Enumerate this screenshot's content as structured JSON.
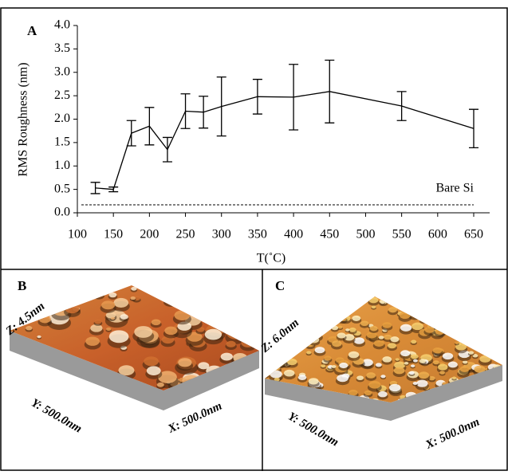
{
  "chart_data": {
    "type": "line",
    "panel_label": "A",
    "xlabel": "T(˚C)",
    "ylabel": "RMS Roughness (nm)",
    "x": [
      125,
      150,
      175,
      200,
      225,
      250,
      275,
      300,
      350,
      400,
      450,
      550,
      650
    ],
    "series": [
      {
        "color": "#000000",
        "values": [
          0.53,
          0.5,
          1.7,
          1.85,
          1.35,
          2.17,
          2.15,
          2.27,
          2.48,
          2.47,
          2.59,
          2.28,
          1.8
        ],
        "errors": [
          0.12,
          0.05,
          0.27,
          0.4,
          0.26,
          0.37,
          0.34,
          0.63,
          0.37,
          0.7,
          0.67,
          0.31,
          0.41
        ]
      }
    ],
    "reference_line": {
      "value": 0.17,
      "label": "Bare Si"
    },
    "xlim": [
      100,
      650
    ],
    "ylim": [
      0,
      4
    ],
    "xticks": [
      100,
      150,
      200,
      250,
      300,
      350,
      400,
      450,
      500,
      550,
      600,
      650
    ],
    "yticks": [
      {
        "value": 0,
        "label": "0.0"
      },
      0.5,
      {
        "value": 1,
        "label": "1.0"
      },
      1.5,
      {
        "value": 2,
        "label": "2.0"
      },
      2.5,
      {
        "value": 3,
        "label": "3.0"
      },
      3.5,
      {
        "value": 4,
        "label": "4.0"
      }
    ]
  },
  "panels": [
    {
      "label": "B",
      "z": "Z: 4.5nm",
      "y": "Y: 500.0nm",
      "x": "X: 500.0nm"
    },
    {
      "label": "C",
      "z": "Z: 6.0nm",
      "y": "Y: 500.0nm",
      "x": "X: 500.0nm"
    }
  ]
}
